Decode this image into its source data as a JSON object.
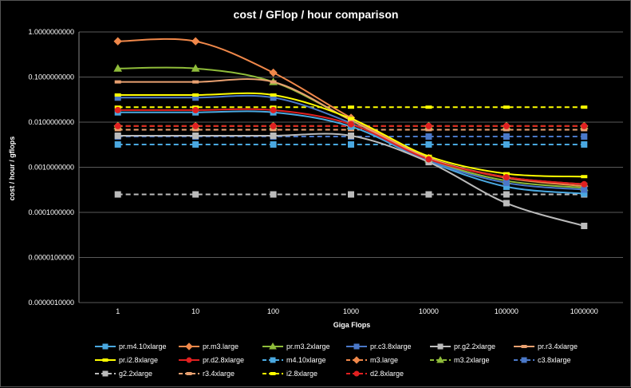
{
  "chart_data": {
    "type": "line",
    "title": "cost / GFlop / hour comparison",
    "xlabel": "Giga Flops",
    "ylabel": "cost / hour / gflops",
    "x_scale": "log",
    "y_scale": "log",
    "x_ticks": [
      "1",
      "10",
      "100",
      "1000",
      "10000",
      "100000",
      "1000000"
    ],
    "y_ticks": [
      "0.0000010000",
      "0.0000100000",
      "0.0001000000",
      "0.0010000000",
      "0.0100000000",
      "0.1000000000",
      "1.0000000000"
    ],
    "ylim": [
      1e-06,
      1
    ],
    "grid": true,
    "legend_position": "bottom",
    "x": [
      1,
      10,
      100,
      1000,
      10000,
      100000,
      1000000
    ],
    "series": [
      {
        "name": "pr.m4.10xlarge",
        "color": "#4aa8e0",
        "dash": "solid",
        "marker": "square",
        "values": [
          0.0165,
          0.0165,
          0.0165,
          0.008,
          0.00135,
          0.00037,
          0.00026
        ]
      },
      {
        "name": "pr.m3.large",
        "color": "#f0884a",
        "dash": "solid",
        "marker": "diamond",
        "values": [
          0.62,
          0.62,
          0.125,
          0.0125,
          0.0016,
          0.00058,
          0.00038
        ]
      },
      {
        "name": "pr.m3.2xlarge",
        "color": "#8fbc3a",
        "dash": "solid",
        "marker": "triangle",
        "values": [
          0.155,
          0.155,
          0.078,
          0.011,
          0.0015,
          0.0005,
          0.00035
        ]
      },
      {
        "name": "pr.c3.8xlarge",
        "color": "#4a78c8",
        "dash": "solid",
        "marker": "square",
        "values": [
          0.035,
          0.035,
          0.035,
          0.0095,
          0.0014,
          0.00045,
          0.00032
        ]
      },
      {
        "name": "pr.g2.2xlarge",
        "color": "#bbbbbb",
        "dash": "solid",
        "marker": "square",
        "values": [
          0.005,
          0.005,
          0.005,
          0.005,
          0.0013,
          0.00016,
          5e-05
        ]
      },
      {
        "name": "pr.r3.4xlarge",
        "color": "#e8a070",
        "dash": "solid",
        "marker": "none",
        "values": [
          0.078,
          0.078,
          0.078,
          0.011,
          0.0016,
          0.0006,
          0.00042
        ]
      },
      {
        "name": "pr.i2.8xlarge",
        "color": "#ffff00",
        "dash": "solid",
        "marker": "none",
        "values": [
          0.04,
          0.04,
          0.04,
          0.012,
          0.00175,
          0.00072,
          0.00062
        ]
      },
      {
        "name": "pr.d2.8xlarge",
        "color": "#e02020",
        "dash": "solid",
        "marker": "circle",
        "values": [
          0.0185,
          0.0185,
          0.0185,
          0.009,
          0.0015,
          0.0006,
          0.00042
        ]
      },
      {
        "name": "m4.10xlarge",
        "color": "#4aa8e0",
        "dash": "dash",
        "marker": "square",
        "values": [
          0.0032,
          0.0032,
          0.0032,
          0.0032,
          0.0032,
          0.0032,
          0.0032
        ]
      },
      {
        "name": "m3.large",
        "color": "#f0884a",
        "dash": "dash",
        "marker": "diamond",
        "values": [
          0.0082,
          0.0082,
          0.0082,
          0.0082,
          0.0082,
          0.0082,
          0.0082
        ]
      },
      {
        "name": "m3.2xlarge",
        "color": "#8fbc3a",
        "dash": "dash",
        "marker": "triangle",
        "values": [
          0.0082,
          0.0082,
          0.0082,
          0.0082,
          0.0082,
          0.0082,
          0.0082
        ]
      },
      {
        "name": "c3.8xlarge",
        "color": "#4a78c8",
        "dash": "dash",
        "marker": "square",
        "values": [
          0.0048,
          0.0048,
          0.0048,
          0.0048,
          0.0048,
          0.0048,
          0.0048
        ]
      },
      {
        "name": "g2.2xlarge",
        "color": "#bbbbbb",
        "dash": "dash",
        "marker": "square",
        "values": [
          0.00025,
          0.00025,
          0.00025,
          0.00025,
          0.00025,
          0.00025,
          0.00025
        ]
      },
      {
        "name": "r3.4xlarge",
        "color": "#e8a070",
        "dash": "dash",
        "marker": "none",
        "values": [
          0.0068,
          0.0068,
          0.0068,
          0.0068,
          0.0068,
          0.0068,
          0.0068
        ]
      },
      {
        "name": "i2.8xlarge",
        "color": "#ffff00",
        "dash": "dash",
        "marker": "none",
        "values": [
          0.0215,
          0.0215,
          0.0215,
          0.0215,
          0.0215,
          0.0215,
          0.0215
        ]
      },
      {
        "name": "d2.8xlarge",
        "color": "#e02020",
        "dash": "dash",
        "marker": "circle",
        "values": [
          0.0082,
          0.0082,
          0.0082,
          0.0082,
          0.0082,
          0.0082,
          0.0082
        ]
      }
    ]
  }
}
